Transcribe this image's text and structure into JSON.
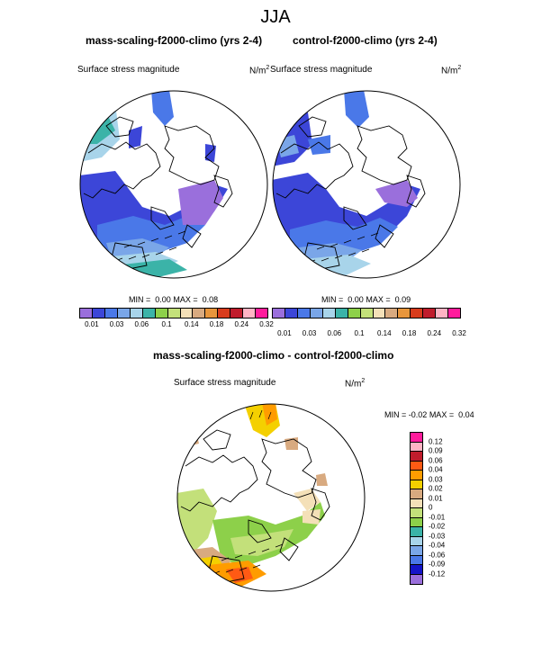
{
  "figure": {
    "title": "JJA"
  },
  "panels": [
    {
      "title": "mass-scaling-f2000-climo (yrs 2-4)",
      "left_label": "Surface stress magnitude",
      "units": "N/m",
      "units_exp": "2",
      "min_label": "MIN =",
      "min_value": "0.00",
      "max_label": "MAX =",
      "max_value": "0.08"
    },
    {
      "title": "control-f2000-climo (yrs 2-4)",
      "left_label": "Surface stress magnitude",
      "units": "N/m",
      "units_exp": "2",
      "min_label": "MIN =",
      "min_value": "0.00",
      "max_label": "MAX =",
      "max_value": "0.09"
    },
    {
      "title": "mass-scaling-f2000-climo - control-f2000-climo",
      "left_label": "Surface stress magnitude",
      "units": "N/m",
      "units_exp": "2",
      "min_label": "MIN =",
      "min_value": "-0.02",
      "max_label": "MAX =",
      "max_value": "0.04"
    }
  ],
  "colorbar_abs": {
    "colors": [
      "#9a6fdc",
      "#3c46d8",
      "#4a78e8",
      "#7aa6e8",
      "#a8d4ea",
      "#3bb3a8",
      "#8dd04a",
      "#c3e07a",
      "#f4e0b8",
      "#d8aa80",
      "#e8963c",
      "#d83c1c",
      "#c01c2c",
      "#ffb4c4",
      "#ff1c9c"
    ],
    "labels": [
      "0.01",
      "0.03",
      "0.06",
      "0.1",
      "0.14",
      "0.18",
      "0.24",
      "0.32"
    ]
  },
  "colorbar_diff": {
    "colors": [
      "#ff1c9c",
      "#ffb4c4",
      "#c01c2c",
      "#ff5a14",
      "#ff9c00",
      "#f4d000",
      "#d8aa80",
      "#f4e0b8",
      "#c3e07a",
      "#8dd04a",
      "#3bb3a8",
      "#a8d4ea",
      "#7aa6e8",
      "#4a78e8",
      "#1414c8",
      "#9a6fdc"
    ],
    "labels": [
      "0.12",
      "0.09",
      "0.06",
      "0.04",
      "0.03",
      "0.02",
      "0.01",
      "0",
      "-0.01",
      "-0.02",
      "-0.03",
      "-0.04",
      "-0.06",
      "-0.09",
      "-0.12"
    ]
  }
}
